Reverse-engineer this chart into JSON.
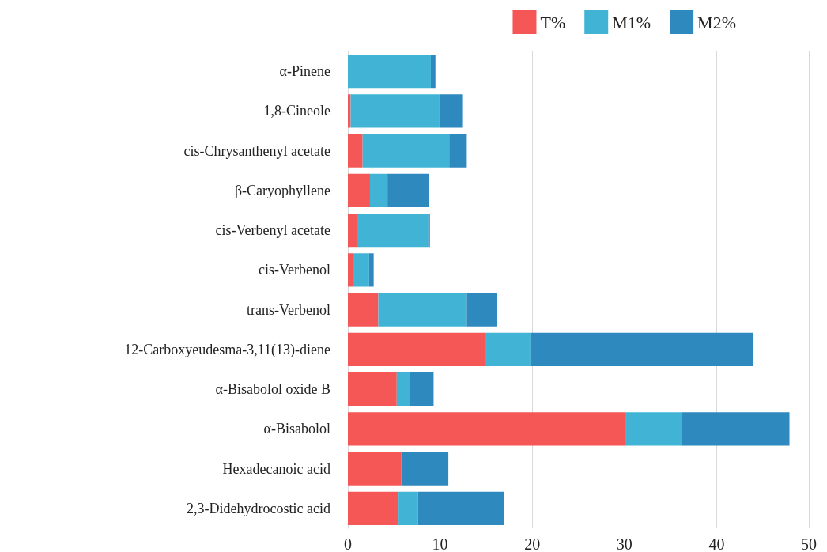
{
  "chart_data": {
    "type": "bar",
    "orientation": "horizontal",
    "stacked": true,
    "categories": [
      "α-Pinene",
      "1,8-Cineole",
      "cis-Chrysanthenyl acetate",
      "β-Caryophyllene",
      "cis-Verbenyl acetate",
      "cis-Verbenol",
      "trans-Verbenol",
      "12-Carboxyeudesma-3,11(13)-diene",
      "α-Bisabolol oxide B",
      "α-Bisabolol",
      "Hexadecanoic acid",
      "2,3-Didehydrocostic acid"
    ],
    "series": [
      {
        "name": "T%",
        "color": "#f55656",
        "values": [
          0,
          0.3,
          1.6,
          2.4,
          1.0,
          0.6,
          3.3,
          14.9,
          5.3,
          30.1,
          5.8,
          5.5
        ]
      },
      {
        "name": "M1%",
        "color": "#41b4d6",
        "values": [
          9.0,
          9.6,
          9.4,
          1.9,
          7.7,
          1.7,
          9.6,
          4.9,
          1.4,
          6.1,
          0,
          2.1
        ]
      },
      {
        "name": "M2%",
        "color": "#2e89bf",
        "values": [
          0.5,
          2.5,
          1.9,
          4.5,
          0.2,
          0.5,
          3.3,
          24.2,
          2.6,
          11.7,
          5.1,
          9.3
        ]
      }
    ],
    "xlim": [
      0,
      50
    ],
    "xticks": [
      0,
      10,
      20,
      30,
      40,
      50
    ],
    "grid": "x",
    "legend": "top right"
  }
}
